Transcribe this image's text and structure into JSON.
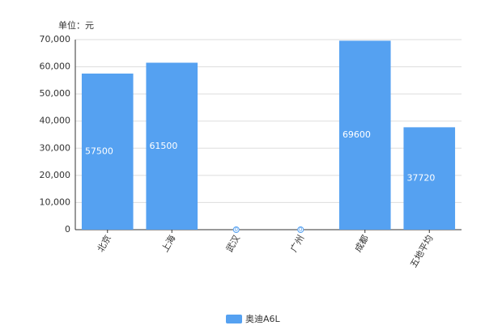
{
  "chart_data": {
    "type": "bar",
    "y_label": "单位：元",
    "categories": [
      "北京",
      "上海",
      "武汉",
      "广州",
      "成都",
      "五地平均"
    ],
    "series": [
      {
        "name": "奥迪A6L",
        "color": "#55a1f1",
        "values": [
          57500,
          61500,
          0,
          0,
          69600,
          37720
        ]
      }
    ],
    "ylim": [
      0,
      70000
    ],
    "yticks": [
      0,
      {
        "value": 10000,
        "label": "10,000"
      },
      {
        "value": 20000,
        "label": "20,000"
      },
      {
        "value": 30000,
        "label": "30,000"
      },
      {
        "value": 40000,
        "label": "40,000"
      },
      {
        "value": 50000,
        "label": "50,000"
      },
      {
        "value": 60000,
        "label": "60,000"
      },
      {
        "value": 70000,
        "label": "70,000"
      }
    ],
    "grid": true
  }
}
